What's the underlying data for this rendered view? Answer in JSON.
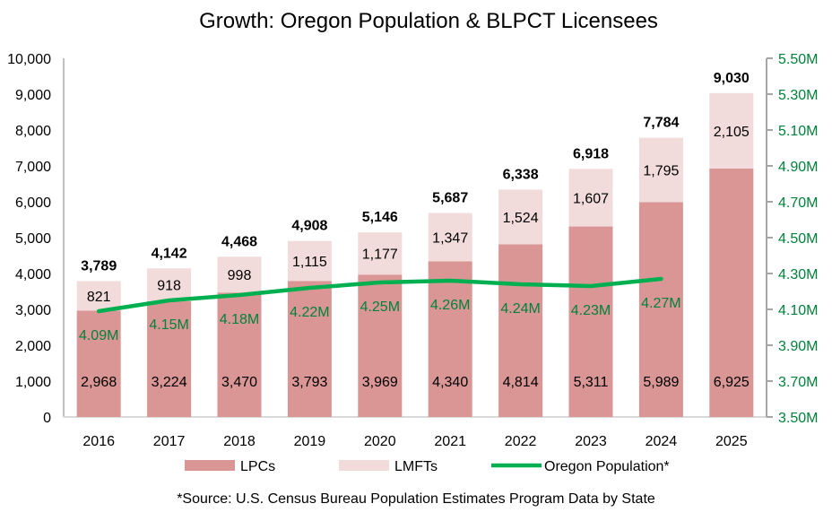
{
  "chart_data": {
    "type": "bar",
    "stacked": true,
    "title": "Growth: Oregon Population & BLPCT Licensees",
    "footnote": "*Source: U.S. Census Bureau Population Estimates Program Data by State",
    "categories": [
      "2016",
      "2017",
      "2018",
      "2019",
      "2020",
      "2021",
      "2022",
      "2023",
      "2024",
      "2025"
    ],
    "series": [
      {
        "name": "LPCs",
        "type": "bar",
        "axis": "left",
        "color": "#d99694",
        "values": [
          2968,
          3224,
          3470,
          3793,
          3969,
          4340,
          4814,
          5311,
          5989,
          6925
        ],
        "labels": [
          "2,968",
          "3,224",
          "3,470",
          "3,793",
          "3,969",
          "4,340",
          "4,814",
          "5,311",
          "5,989",
          "6,925"
        ]
      },
      {
        "name": "LMFTs",
        "type": "bar",
        "axis": "left",
        "color": "#f2dcdb",
        "values": [
          821,
          918,
          998,
          1115,
          1177,
          1347,
          1524,
          1607,
          1795,
          2105
        ],
        "labels": [
          "821",
          "918",
          "998",
          "1,115",
          "1,177",
          "1,347",
          "1,524",
          "1,607",
          "1,795",
          "2,105"
        ]
      },
      {
        "name": "Oregon Population*",
        "type": "line",
        "axis": "right",
        "color": "#00b050",
        "values": [
          4.09,
          4.15,
          4.18,
          4.22,
          4.25,
          4.26,
          4.24,
          4.23,
          4.27,
          null
        ],
        "labels": [
          "4.09M",
          "4.15M",
          "4.18M",
          "4.22M",
          "4.25M",
          "4.26M",
          "4.24M",
          "4.23M",
          "4.27M",
          ""
        ]
      }
    ],
    "totals": [
      "3,789",
      "4,142",
      "4,468",
      "4,908",
      "5,146",
      "5,687",
      "6,338",
      "6,918",
      "7,784",
      "9,030"
    ],
    "ylim": [
      0,
      10000
    ],
    "yticks": [
      "0",
      "1,000",
      "2,000",
      "3,000",
      "4,000",
      "5,000",
      "6,000",
      "7,000",
      "8,000",
      "9,000",
      "10,000"
    ],
    "y2lim": [
      3.5,
      5.5
    ],
    "y2ticks": [
      "3.50M",
      "3.70M",
      "3.90M",
      "4.10M",
      "4.30M",
      "4.50M",
      "4.70M",
      "4.90M",
      "5.10M",
      "5.30M",
      "5.50M"
    ],
    "y2_color": "#00823b",
    "grid": false,
    "legend": "bottom"
  }
}
